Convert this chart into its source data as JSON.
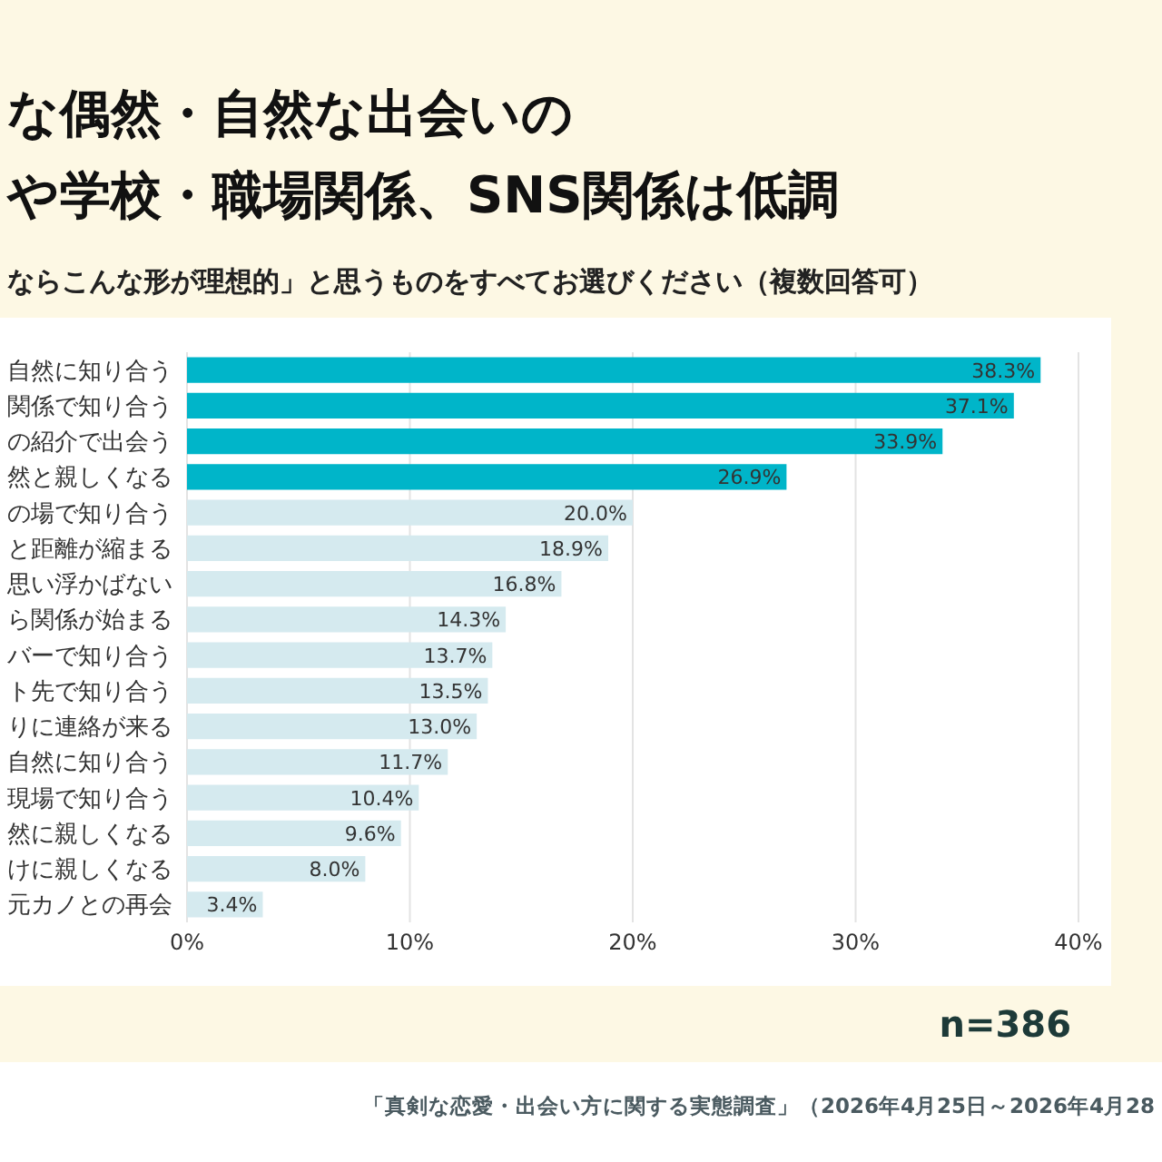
{
  "chart_data": {
    "type": "bar",
    "orientation": "horizontal",
    "title": "な偶然・自然な出会いの",
    "subtitle": "や学校・職場関係、SNS関係は低調",
    "annotations": [
      "ならこんな形が理想的」と思うものをすべてお選びください（複数回答可）",
      "n=386",
      "「真剣な恋愛・出会い方に関する実態調査」（2026年4月25日～2026年4月28"
    ],
    "categories": [
      "自然に知り合う",
      "関係で知り合う",
      "の紹介で出会う",
      "然と親しくなる",
      "の場で知り合う",
      "と距離が縮まる",
      "思い浮かばない",
      "ら関係が始まる",
      "バーで知り合う",
      "ト先で知り合う",
      "りに連絡が来る",
      "自然に知り合う",
      "現場で知り合う",
      "然に親しくなる",
      "けに親しくなる",
      "元カノとの再会"
    ],
    "values": [
      38.3,
      37.1,
      33.9,
      26.9,
      20.0,
      18.9,
      16.8,
      14.3,
      13.7,
      13.5,
      13.0,
      11.7,
      10.4,
      9.6,
      8.0,
      3.4
    ],
    "value_labels": [
      "38.3%",
      "37.1%",
      "33.9%",
      "26.9%",
      "20.0%",
      "18.9%",
      "16.8%",
      "14.3%",
      "13.7%",
      "13.5%",
      "13.0%",
      "11.7%",
      "10.4%",
      "9.6%",
      "8.0%",
      "3.4%"
    ],
    "colors": [
      "#00b5c9",
      "#00b5c9",
      "#00b5c9",
      "#00b5c9",
      "#d5eaef",
      "#d5eaef",
      "#d5eaef",
      "#d5eaef",
      "#d5eaef",
      "#d5eaef",
      "#d5eaef",
      "#d5eaef",
      "#d5eaef",
      "#d5eaef",
      "#d5eaef",
      "#d5eaef"
    ],
    "xlim": [
      0,
      40
    ],
    "xticks": [
      {
        "value": 0,
        "label": "0%"
      },
      {
        "value": 10,
        "label": "10%"
      },
      {
        "value": 20,
        "label": "20%"
      },
      {
        "value": 30,
        "label": "30%"
      },
      {
        "value": 40,
        "label": "40%"
      }
    ],
    "grid": "x"
  }
}
